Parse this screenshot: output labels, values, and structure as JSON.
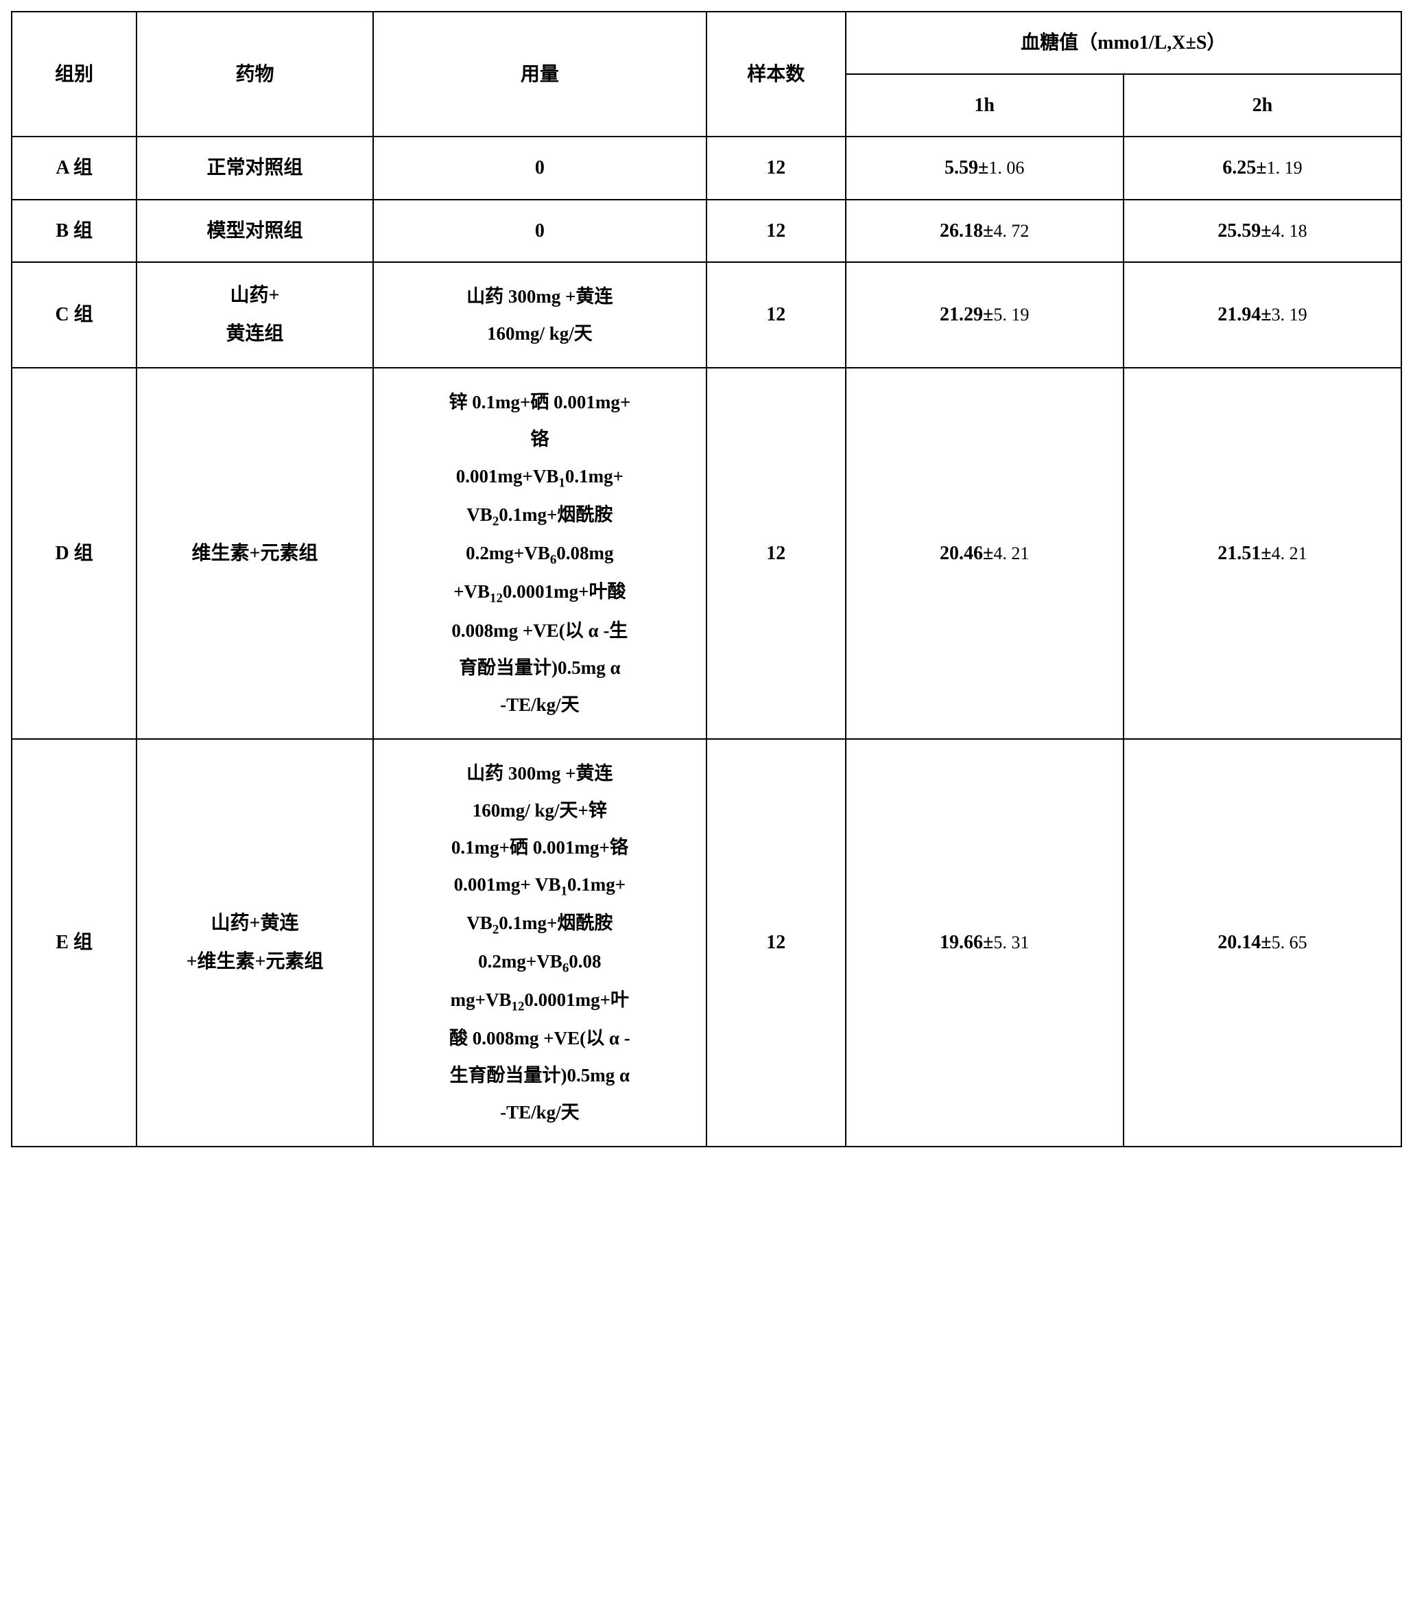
{
  "table": {
    "columns": {
      "group": "组别",
      "drug": "药物",
      "dose": "用量",
      "sample": "样本数",
      "bloodsugar_header": "血糖值（mmo1/L,X±S）",
      "h1": "1h",
      "h2": "2h"
    },
    "rows": [
      {
        "group": "A 组",
        "drug": "正常对照组",
        "dose": "0",
        "sample": "12",
        "v1_main": "5.59±",
        "v1_sub": "1. 06",
        "v2_main": "6.25±",
        "v2_sub": "1. 19"
      },
      {
        "group": "B 组",
        "drug": "模型对照组",
        "dose": "0",
        "sample": "12",
        "v1_main": "26.18±",
        "v1_sub": "4. 72",
        "v2_main": "25.59±",
        "v2_sub": "4. 18"
      },
      {
        "group": "C 组",
        "drug_line1": "山药+",
        "drug_line2": "黄连组",
        "dose_line1": "山药 300mg +黄连",
        "dose_line2": "160mg/ kg/天",
        "sample": "12",
        "v1_main": "21.29±",
        "v1_sub": "5. 19",
        "v2_main": "21.94±",
        "v2_sub": "3. 19"
      },
      {
        "group": "D 组",
        "drug": "维生素+元素组",
        "dose_l1": "锌 0.1mg+硒 0.001mg+",
        "dose_l2": "铬",
        "dose_l3a": "0.001mg+VB",
        "dose_l3b": "0.1mg+",
        "dose_l4a": "VB",
        "dose_l4b": "0.1mg+烟酰胺",
        "dose_l5a": "0.2mg+VB",
        "dose_l5b": "0.08mg",
        "dose_l6a": "+VB",
        "dose_l6b": "0.0001mg+叶酸",
        "dose_l7": "0.008mg +VE(以 α -生",
        "dose_l8": "育酚当量计)0.5mg α",
        "dose_l9": "-TE/kg/天",
        "sample": "12",
        "v1_main": "20.46±",
        "v1_sub": "4. 21",
        "v2_main": "21.51±",
        "v2_sub": "4. 21"
      },
      {
        "group": "E 组",
        "drug_line1": "山药+黄连",
        "drug_line2": "+维生素+元素组",
        "dose_l1": "山药 300mg +黄连",
        "dose_l2": "160mg/ kg/天+锌",
        "dose_l3": "0.1mg+硒 0.001mg+铬",
        "dose_l4a": "0.001mg+ VB",
        "dose_l4b": "0.1mg+",
        "dose_l5a": "VB",
        "dose_l5b": "0.1mg+烟酰胺",
        "dose_l6a": "0.2mg+VB",
        "dose_l6b": "0.08",
        "dose_l7a": "mg+VB",
        "dose_l7b": "0.0001mg+叶",
        "dose_l8": "酸 0.008mg +VE(以 α -",
        "dose_l9": "生育酚当量计)0.5mg α",
        "dose_l10": "-TE/kg/天",
        "sample": "12",
        "v1_main": "19.66±",
        "v1_sub": "5. 31",
        "v2_main": "20.14±",
        "v2_sub": "5. 65"
      }
    ],
    "subscripts": {
      "vb1": "1",
      "vb2": "2",
      "vb6": "6",
      "vb12": "12"
    },
    "style": {
      "border_color": "#000000",
      "background_color": "#ffffff",
      "text_color": "#000000",
      "header_fontsize": 28,
      "cell_fontsize": 28,
      "font_weight": "bold",
      "border_width": 2,
      "col_widths_pct": [
        9,
        17,
        24,
        10,
        20,
        20
      ]
    }
  }
}
